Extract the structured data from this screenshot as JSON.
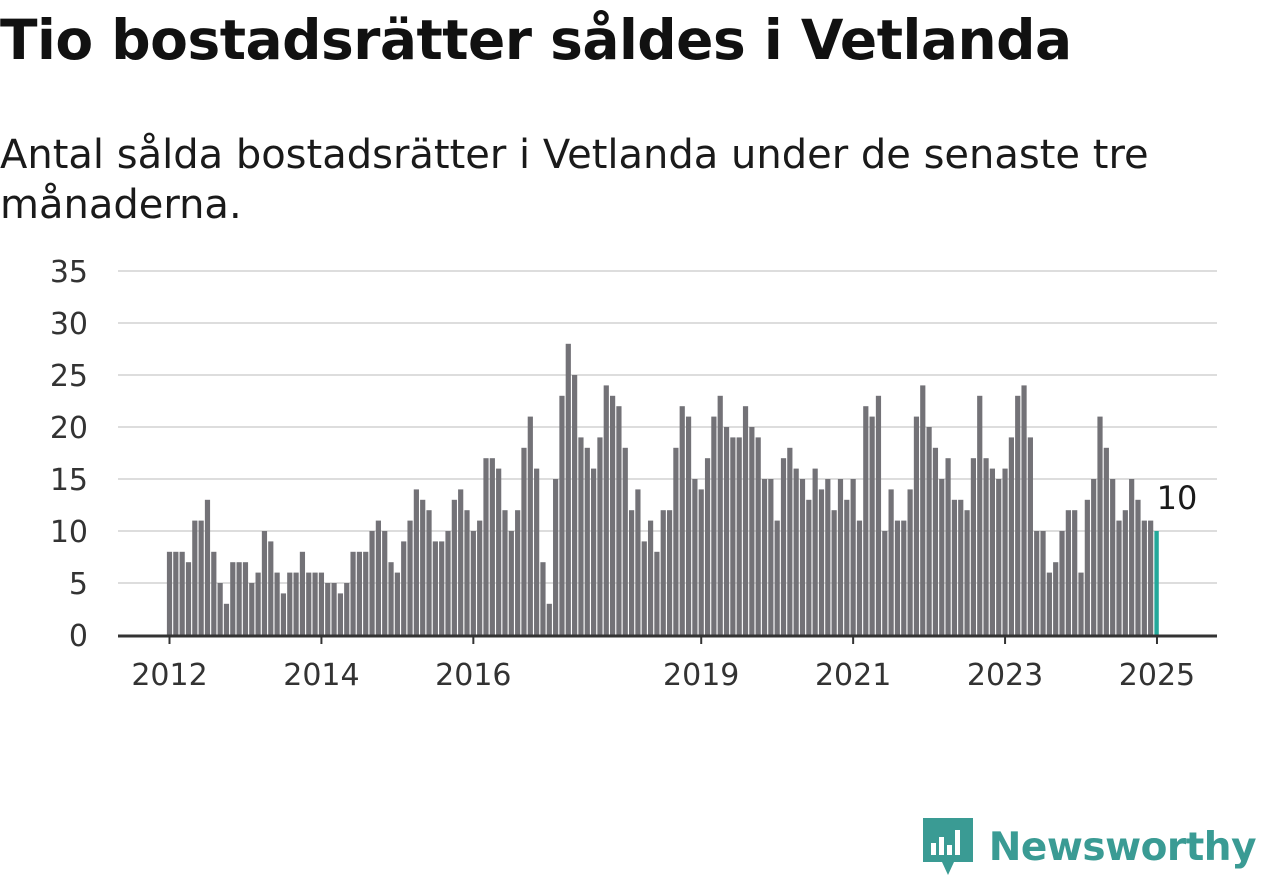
{
  "chart_data": {
    "type": "bar",
    "title": "Tio bostadsrätter såldes i Vetlanda",
    "subtitle": "Antal sålda bostadsrätter i Vetlanda under de senaste tre månaderna.",
    "start": "2012-01",
    "frequency": "monthly",
    "values": [
      8,
      8,
      8,
      7,
      11,
      11,
      13,
      8,
      5,
      3,
      7,
      7,
      7,
      5,
      6,
      10,
      9,
      6,
      4,
      6,
      6,
      8,
      6,
      6,
      6,
      5,
      5,
      4,
      5,
      8,
      8,
      8,
      10,
      11,
      10,
      7,
      6,
      9,
      11,
      14,
      13,
      12,
      9,
      9,
      10,
      13,
      14,
      12,
      10,
      11,
      17,
      17,
      16,
      12,
      10,
      12,
      18,
      21,
      16,
      7,
      3,
      15,
      23,
      28,
      25,
      19,
      18,
      16,
      19,
      24,
      23,
      22,
      18,
      12,
      14,
      9,
      11,
      8,
      12,
      12,
      18,
      22,
      21,
      15,
      14,
      17,
      21,
      23,
      20,
      19,
      19,
      22,
      20,
      19,
      15,
      15,
      11,
      17,
      18,
      16,
      15,
      13,
      16,
      14,
      15,
      12,
      15,
      13,
      15,
      11,
      22,
      21,
      23,
      10,
      14,
      11,
      11,
      14,
      21,
      24,
      20,
      18,
      15,
      17,
      13,
      13,
      12,
      17,
      23,
      17,
      16,
      15,
      16,
      19,
      23,
      24,
      19,
      10,
      10,
      6,
      7,
      10,
      12,
      12,
      6,
      13,
      15,
      21,
      18,
      15,
      11,
      12,
      15,
      13,
      11,
      11,
      10
    ],
    "x_tick_labels": [
      "2012",
      "2014",
      "2016",
      "2019",
      "2021",
      "2023",
      "2025"
    ],
    "y_ticks": [
      "0",
      "5",
      "10",
      "15",
      "20",
      "25",
      "30",
      "35"
    ],
    "ylim": [
      0,
      35
    ],
    "grid": true,
    "colors": {
      "bar": "#737277",
      "highlight": "#24a89a",
      "grid": "#dddddd",
      "axis": "#333333"
    },
    "annotation": {
      "label": "10",
      "value": 10
    }
  },
  "brand": {
    "name": "Newsworthy",
    "icon": "newsworthy-logo-icon",
    "color": "#3a9b94"
  }
}
